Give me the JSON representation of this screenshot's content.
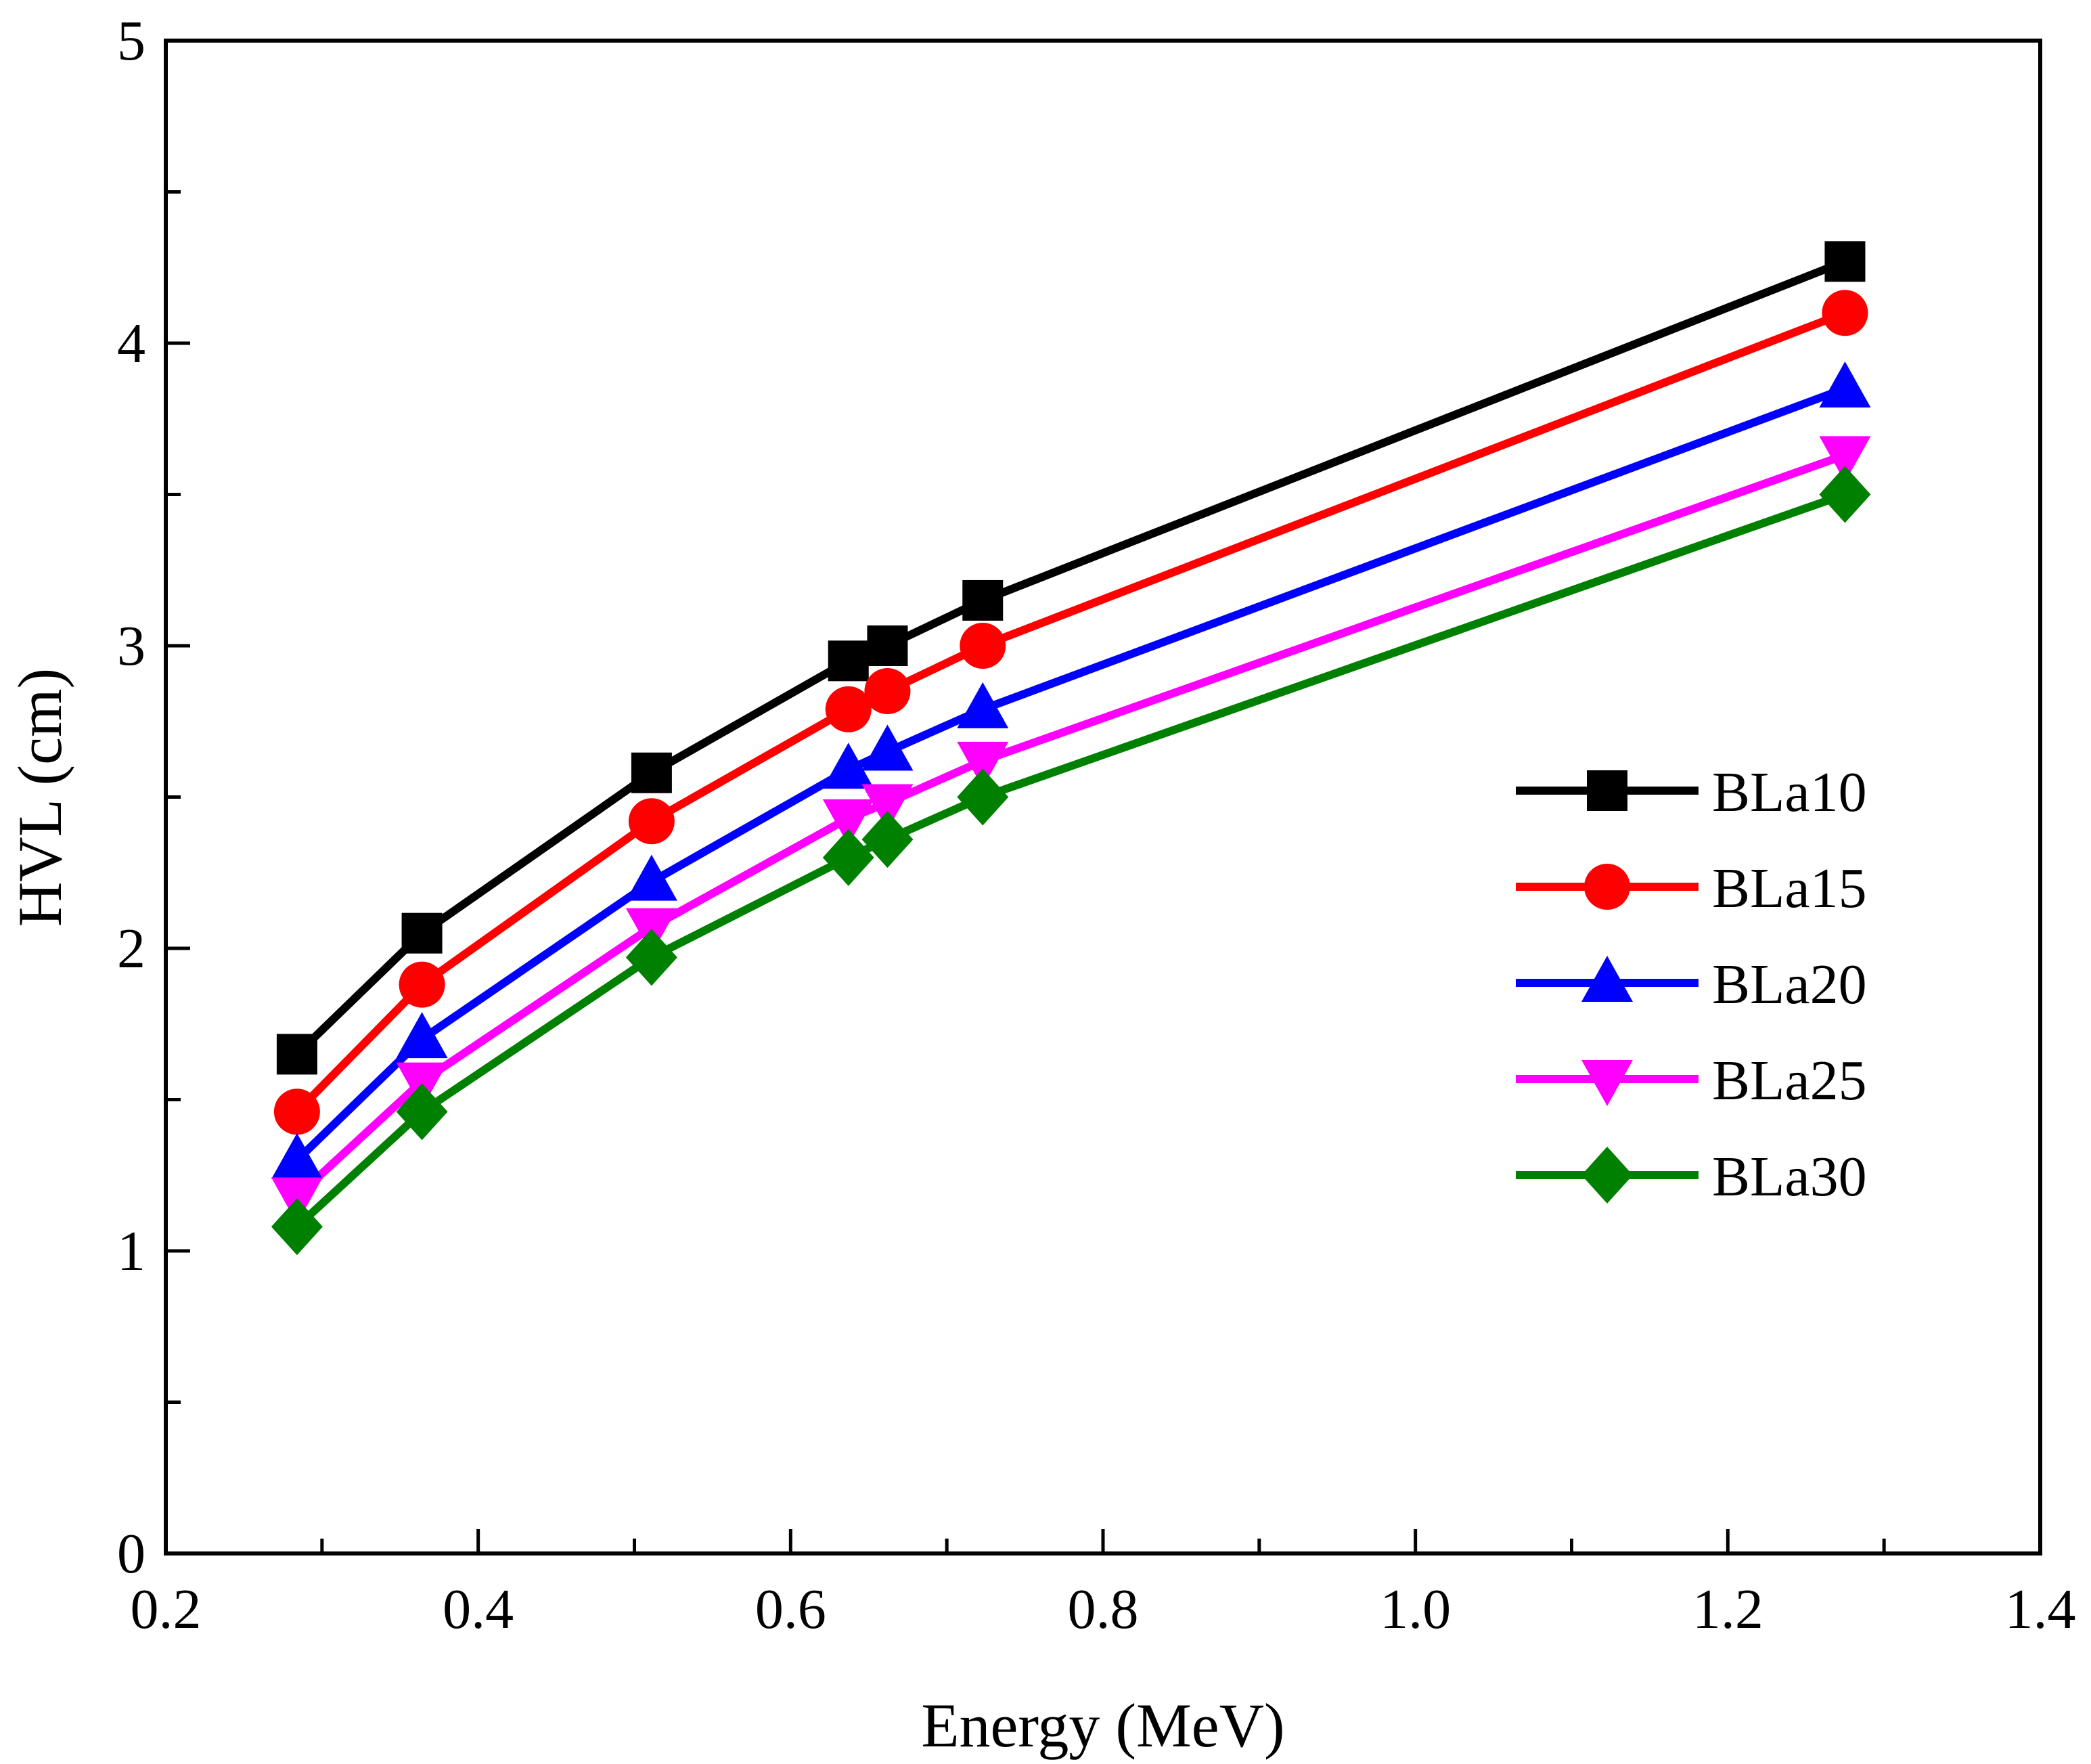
{
  "chart_data": {
    "type": "line",
    "title": "",
    "xlabel": "Energy (MeV)",
    "ylabel": "HVL (cm)",
    "xlim": [
      0.2,
      1.4
    ],
    "ylim": [
      0,
      5
    ],
    "xticks": [
      0.2,
      0.4,
      0.6,
      0.8,
      1.0,
      1.2,
      1.4
    ],
    "xtick_labels": [
      "0.2",
      "0.4",
      "0.6",
      "0.8",
      "1.0",
      "1.2",
      "1.4"
    ],
    "yticks": [
      0,
      1,
      2,
      3,
      4,
      5
    ],
    "ytick_labels": [
      "0",
      "1",
      "2",
      "3",
      "4",
      "5"
    ],
    "grid": false,
    "legend_position": "right",
    "x": [
      0.284,
      0.364,
      0.511,
      0.637,
      0.662,
      0.723,
      1.275
    ],
    "series": [
      {
        "name": "BLa10",
        "marker": "square",
        "color": "#000000",
        "values": [
          1.65,
          2.05,
          2.58,
          2.95,
          3.0,
          3.15,
          4.27
        ]
      },
      {
        "name": "BLa15",
        "marker": "circle",
        "color": "#ff0000",
        "values": [
          1.46,
          1.88,
          2.42,
          2.79,
          2.85,
          3.0,
          4.1
        ]
      },
      {
        "name": "BLa20",
        "marker": "triangle-up",
        "color": "#0000ff",
        "values": [
          1.3,
          1.7,
          2.22,
          2.59,
          2.65,
          2.79,
          3.85
        ]
      },
      {
        "name": "BLa25",
        "marker": "triangle-down",
        "color": "#ff00ff",
        "values": [
          1.18,
          1.56,
          2.07,
          2.43,
          2.48,
          2.62,
          3.63
        ]
      },
      {
        "name": "BLa30",
        "marker": "diamond",
        "color": "#008000",
        "values": [
          1.08,
          1.46,
          1.97,
          2.3,
          2.36,
          2.5,
          3.5
        ]
      }
    ]
  }
}
